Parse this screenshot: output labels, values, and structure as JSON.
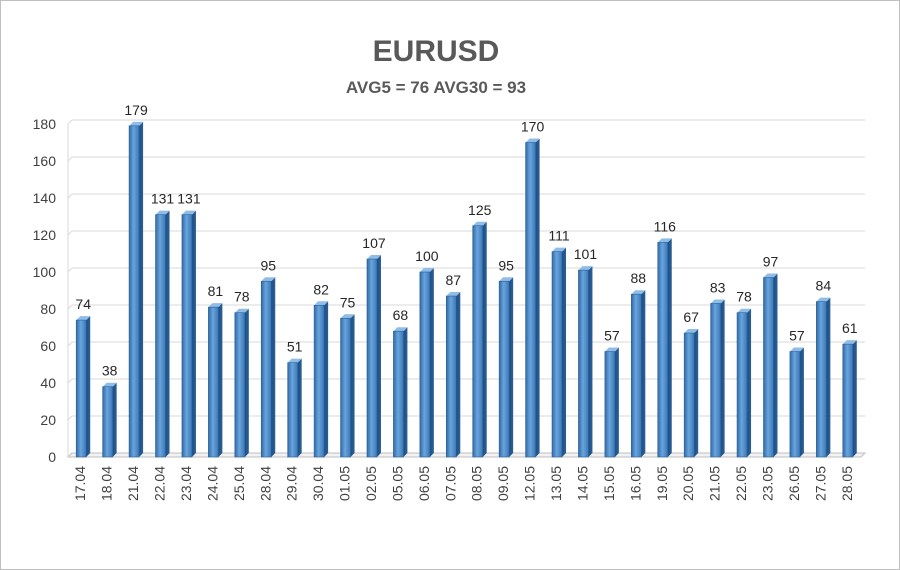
{
  "chart_data": {
    "type": "bar",
    "title": "EURUSD",
    "subtitle": "AVG5 = 76 AVG30 = 93",
    "xlabel": "",
    "ylabel": "",
    "ylim": [
      0,
      180
    ],
    "yticks": [
      0,
      20,
      40,
      60,
      80,
      100,
      120,
      140,
      160,
      180
    ],
    "ytick_labels": [
      "0",
      "20",
      "40",
      "60",
      "80",
      "100",
      "120",
      "140",
      "160",
      "180"
    ],
    "grid": true,
    "categories": [
      "17.04",
      "18.04",
      "21.04",
      "22.04",
      "23.04",
      "24.04",
      "25.04",
      "28.04",
      "29.04",
      "30.04",
      "01.05",
      "02.05",
      "05.05",
      "06.05",
      "07.05",
      "08.05",
      "09.05",
      "12.05",
      "13.05",
      "14.05",
      "15.05",
      "16.05",
      "19.05",
      "20.05",
      "21.05",
      "22.05",
      "23.05",
      "26.05",
      "27.05",
      "28.05"
    ],
    "values": [
      74,
      38,
      179,
      131,
      131,
      81,
      78,
      95,
      51,
      82,
      75,
      107,
      68,
      100,
      87,
      125,
      95,
      170,
      111,
      101,
      57,
      88,
      116,
      67,
      83,
      78,
      97,
      57,
      84,
      61
    ],
    "value_labels": [
      "74",
      "38",
      "179",
      "131",
      "131",
      "81",
      "78",
      "95",
      "51",
      "82",
      "75",
      "107",
      "68",
      "100",
      "87",
      "125",
      "95",
      "170",
      "111",
      "101",
      "57",
      "88",
      "116",
      "67",
      "83",
      "78",
      "97",
      "57",
      "84",
      "61"
    ],
    "bar_color": "#4a86c5"
  }
}
